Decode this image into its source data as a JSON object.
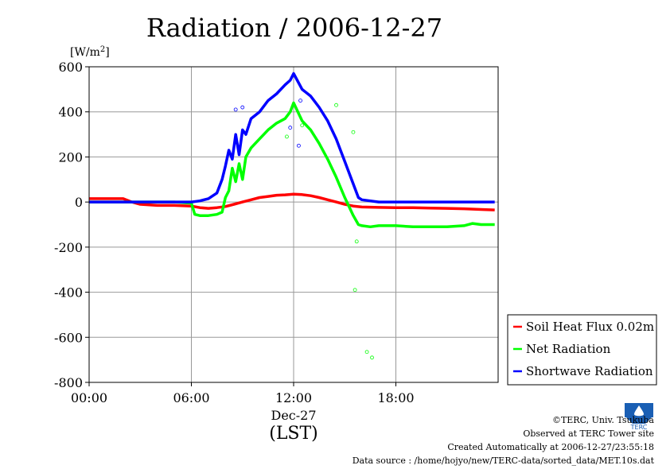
{
  "chart_data": {
    "type": "line",
    "title": "Radiation / 2006-12-27",
    "ylabel_unit": "[W/m",
    "ylabel_unit_sup": "2",
    "ylabel_unit_close": "]",
    "ylim": [
      -800,
      600
    ],
    "yticks": [
      "600",
      "400",
      "200",
      "0",
      "-200",
      "-400",
      "-600",
      "-800"
    ],
    "ytick_values": [
      600,
      400,
      200,
      0,
      -200,
      -400,
      -600,
      -800
    ],
    "xlim": [
      0,
      24
    ],
    "xticks": [
      "00:00",
      "06:00",
      "12:00",
      "18:00"
    ],
    "xtick_values": [
      0,
      6,
      12,
      18
    ],
    "xlabel_date": "Dec-27",
    "xlabel": "(LST)",
    "grid": true,
    "legend_position": "bottom-right",
    "series": [
      {
        "name": "Soil Heat Flux 0.02m",
        "color": "#ff0000",
        "x": [
          0,
          2,
          2.5,
          3,
          4,
          5,
          6,
          6.5,
          7,
          7.5,
          8,
          8.5,
          9,
          9.5,
          10,
          10.5,
          11,
          11.5,
          12,
          12.5,
          13,
          13.5,
          14,
          14.5,
          15,
          15.5,
          16,
          17,
          18,
          19,
          20,
          21,
          22,
          23,
          23.8
        ],
        "values": [
          15,
          15,
          0,
          -10,
          -15,
          -15,
          -18,
          -25,
          -28,
          -25,
          -20,
          -10,
          0,
          10,
          20,
          25,
          30,
          32,
          35,
          33,
          28,
          20,
          10,
          0,
          -10,
          -18,
          -22,
          -24,
          -25,
          -25,
          -27,
          -28,
          -30,
          -33,
          -35
        ]
      },
      {
        "name": "Net Radiation",
        "color": "#00ff00",
        "x": [
          0,
          2,
          3,
          4,
          5,
          6,
          6.2,
          6.5,
          7,
          7.5,
          7.8,
          8,
          8.2,
          8.4,
          8.6,
          8.8,
          9,
          9.2,
          9.5,
          10,
          10.5,
          11,
          11.5,
          11.8,
          12,
          12.5,
          13,
          13.5,
          14,
          14.5,
          15,
          15.5,
          15.8,
          16,
          16.5,
          17,
          18,
          19,
          20,
          21,
          22,
          22.5,
          23,
          23.8
        ],
        "values": [
          0,
          0,
          0,
          0,
          0,
          -5,
          -55,
          -60,
          -60,
          -55,
          -45,
          20,
          50,
          150,
          90,
          170,
          100,
          200,
          240,
          280,
          320,
          350,
          370,
          400,
          440,
          360,
          320,
          260,
          190,
          110,
          20,
          -60,
          -100,
          -105,
          -110,
          -105,
          -105,
          -110,
          -110,
          -110,
          -105,
          -95,
          -100,
          -100
        ]
      },
      {
        "name": "Shortwave Radiation",
        "color": "#0000ff",
        "x": [
          0,
          3,
          5,
          6,
          6.5,
          7,
          7.5,
          7.8,
          8,
          8.2,
          8.4,
          8.6,
          8.8,
          9,
          9.2,
          9.5,
          10,
          10.5,
          11,
          11.5,
          11.8,
          12,
          12.5,
          13,
          13.5,
          14,
          14.5,
          15,
          15.5,
          15.8,
          16,
          17,
          18,
          19,
          20,
          21,
          22,
          23,
          23.8
        ],
        "values": [
          0,
          0,
          0,
          0,
          5,
          15,
          40,
          100,
          160,
          230,
          190,
          300,
          210,
          320,
          300,
          370,
          400,
          450,
          480,
          520,
          540,
          570,
          500,
          470,
          420,
          360,
          280,
          180,
          80,
          20,
          10,
          0,
          0,
          0,
          0,
          0,
          0,
          0,
          0
        ]
      }
    ],
    "scatter_outliers": [
      {
        "series": "Net Radiation",
        "x": 15.6,
        "y": -390
      },
      {
        "series": "Net Radiation",
        "x": 16.3,
        "y": -665
      },
      {
        "series": "Net Radiation",
        "x": 16.6,
        "y": -690
      },
      {
        "series": "Net Radiation",
        "x": 15.7,
        "y": -175
      },
      {
        "series": "Net Radiation",
        "x": 14.5,
        "y": 430
      },
      {
        "series": "Net Radiation",
        "x": 15.5,
        "y": 310
      },
      {
        "series": "Net Radiation",
        "x": 11.6,
        "y": 290
      },
      {
        "series": "Net Radiation",
        "x": 12.5,
        "y": 340
      },
      {
        "series": "Shortwave Radiation",
        "x": 8.6,
        "y": 410
      },
      {
        "series": "Shortwave Radiation",
        "x": 9.0,
        "y": 420
      },
      {
        "series": "Shortwave Radiation",
        "x": 11.8,
        "y": 330
      },
      {
        "series": "Shortwave Radiation",
        "x": 12.3,
        "y": 250
      },
      {
        "series": "Shortwave Radiation",
        "x": 12.4,
        "y": 450
      }
    ]
  },
  "footer": {
    "copyright": "©TERC, Univ. Tsukuba",
    "observed": "Observed at TERC Tower site",
    "created": "Created Automatically at 2006-12-27/23:55:18",
    "source": "Data source : /home/hojyo/new/TERC-data/sorted_data/MET.10s.dat"
  },
  "logo": {
    "text": "TERC",
    "icon": "terc-logo-icon",
    "color": "#1a5fb4"
  }
}
